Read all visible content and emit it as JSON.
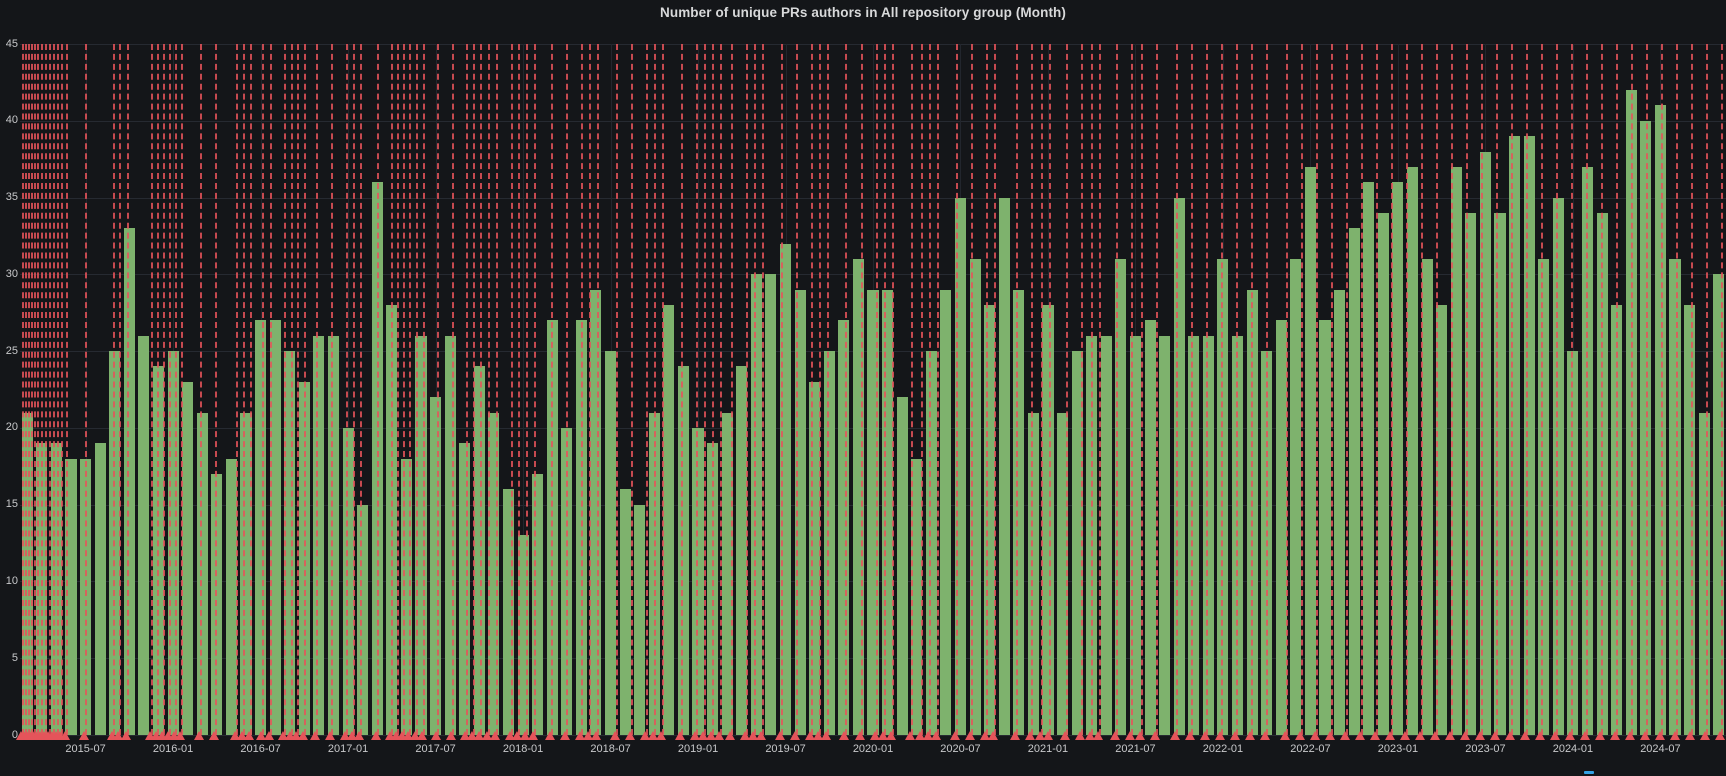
{
  "panel": {
    "title": "Number of unique PRs authors in All repository group (Month)"
  },
  "colors": {
    "background": "#141619",
    "bar": "#7eb26d",
    "annotation": "#e5545a",
    "grid": "#262a31",
    "axis_text": "#c8c9cb",
    "title_text": "#d8d9da",
    "legend_swatch": "#33a2e5"
  },
  "chart_data": {
    "type": "bar",
    "title": "Number of unique PRs authors in All repository group (Month)",
    "xlabel": "",
    "ylabel": "",
    "ylim": [
      0,
      45
    ],
    "yticks": [
      0,
      5,
      10,
      15,
      20,
      25,
      30,
      35,
      40,
      45
    ],
    "grid": "on",
    "legend_position": "none",
    "xtick_labels": [
      "2015-07",
      "2016-01",
      "2016-07",
      "2017-01",
      "2017-07",
      "2018-01",
      "2018-07",
      "2019-01",
      "2019-07",
      "2020-01",
      "2020-07",
      "2021-01",
      "2021-07",
      "2022-01",
      "2022-07",
      "2023-01",
      "2023-07",
      "2024-01",
      "2024-07"
    ],
    "xtick_first_bar_index": 4,
    "xtick_step": 6,
    "categories": [
      "2015-03",
      "2015-04",
      "2015-05",
      "2015-06",
      "2015-07",
      "2015-08",
      "2015-09",
      "2015-10",
      "2015-11",
      "2015-12",
      "2016-01",
      "2016-02",
      "2016-03",
      "2016-04",
      "2016-05",
      "2016-06",
      "2016-07",
      "2016-08",
      "2016-09",
      "2016-10",
      "2016-11",
      "2016-12",
      "2017-01",
      "2017-02",
      "2017-03",
      "2017-04",
      "2017-05",
      "2017-06",
      "2017-07",
      "2017-08",
      "2017-09",
      "2017-10",
      "2017-11",
      "2017-12",
      "2018-01",
      "2018-02",
      "2018-03",
      "2018-04",
      "2018-05",
      "2018-06",
      "2018-07",
      "2018-08",
      "2018-09",
      "2018-10",
      "2018-11",
      "2018-12",
      "2019-01",
      "2019-02",
      "2019-03",
      "2019-04",
      "2019-05",
      "2019-06",
      "2019-07",
      "2019-08",
      "2019-09",
      "2019-10",
      "2019-11",
      "2019-12",
      "2020-01",
      "2020-02",
      "2020-03",
      "2020-04",
      "2020-05",
      "2020-06",
      "2020-07",
      "2020-08",
      "2020-09",
      "2020-10",
      "2020-11",
      "2020-12",
      "2021-01",
      "2021-02",
      "2021-03",
      "2021-04",
      "2021-05",
      "2021-06",
      "2021-07",
      "2021-08",
      "2021-09",
      "2021-10",
      "2021-11",
      "2021-12",
      "2022-01",
      "2022-02",
      "2022-03",
      "2022-04",
      "2022-05",
      "2022-06",
      "2022-07",
      "2022-08",
      "2022-09",
      "2022-10",
      "2022-11",
      "2022-12",
      "2023-01",
      "2023-02",
      "2023-03",
      "2023-04",
      "2023-05",
      "2023-06",
      "2023-07",
      "2023-08",
      "2023-09",
      "2023-10",
      "2023-11",
      "2023-12",
      "2024-01",
      "2024-02",
      "2024-03",
      "2024-04",
      "2024-05",
      "2024-06",
      "2024-07",
      "2024-08",
      "2024-09",
      "2024-10",
      "2024-11"
    ],
    "values": [
      21,
      19,
      19,
      18,
      18,
      19,
      25,
      33,
      26,
      24,
      25,
      23,
      21,
      17,
      18,
      21,
      27,
      27,
      25,
      23,
      26,
      26,
      20,
      15,
      36,
      28,
      18,
      26,
      22,
      26,
      19,
      24,
      21,
      16,
      13,
      17,
      27,
      20,
      27,
      29,
      25,
      16,
      15,
      21,
      28,
      24,
      20,
      19,
      21,
      24,
      30,
      30,
      32,
      29,
      23,
      25,
      27,
      31,
      29,
      29,
      22,
      18,
      25,
      29,
      35,
      31,
      28,
      35,
      29,
      21,
      28,
      21,
      25,
      26,
      26,
      31,
      26,
      27,
      26,
      35,
      26,
      26,
      31,
      26,
      29,
      25,
      27,
      31,
      37,
      27,
      29,
      33,
      36,
      34,
      36,
      37,
      31,
      28,
      37,
      34,
      38,
      34,
      39,
      39,
      31,
      35,
      25,
      37,
      34,
      28,
      42,
      40,
      41,
      31,
      28,
      21,
      30
    ],
    "annotations": {
      "style": "dashed-vertical-line-with-triangle",
      "positions": [
        0.0012,
        0.0029,
        0.0047,
        0.0064,
        0.0082,
        0.01,
        0.0123,
        0.0147,
        0.017,
        0.0193,
        0.0217,
        0.024,
        0.027,
        0.0381,
        0.0545,
        0.058,
        0.0627,
        0.0768,
        0.0803,
        0.0838,
        0.0873,
        0.0908,
        0.0944,
        0.1055,
        0.1143,
        0.1266,
        0.1307,
        0.1348,
        0.1418,
        0.1465,
        0.1547,
        0.1588,
        0.1623,
        0.1665,
        0.1735,
        0.1823,
        0.1911,
        0.1952,
        0.1993,
        0.2093,
        0.2175,
        0.221,
        0.2245,
        0.228,
        0.2321,
        0.2362,
        0.2444,
        0.2532,
        0.2614,
        0.2655,
        0.2696,
        0.2743,
        0.279,
        0.2878,
        0.2919,
        0.2966,
        0.3013,
        0.3112,
        0.32,
        0.3288,
        0.3335,
        0.3382,
        0.3493,
        0.3581,
        0.3669,
        0.3716,
        0.3763,
        0.3874,
        0.3962,
        0.4009,
        0.4056,
        0.4103,
        0.4167,
        0.4255,
        0.4302,
        0.4349,
        0.4461,
        0.4549,
        0.4637,
        0.4683,
        0.473,
        0.4836,
        0.493,
        0.5018,
        0.5064,
        0.5111,
        0.5223,
        0.5281,
        0.5328,
        0.5375,
        0.5486,
        0.5574,
        0.5662,
        0.5709,
        0.5838,
        0.5926,
        0.5984,
        0.6031,
        0.6131,
        0.6219,
        0.6277,
        0.6324,
        0.6424,
        0.6512,
        0.6571,
        0.6659,
        0.6776,
        0.6864,
        0.6952,
        0.704,
        0.7128,
        0.7216,
        0.7304,
        0.7421,
        0.7509,
        0.7597,
        0.7685,
        0.7773,
        0.7861,
        0.7949,
        0.8036,
        0.8124,
        0.8212,
        0.83,
        0.8388,
        0.8476,
        0.8564,
        0.8652,
        0.874,
        0.8828,
        0.8916,
        0.9004,
        0.9092,
        0.918,
        0.9268,
        0.9355,
        0.9443,
        0.9531,
        0.9619,
        0.9707,
        0.9795,
        0.9883,
        0.9971
      ]
    }
  }
}
